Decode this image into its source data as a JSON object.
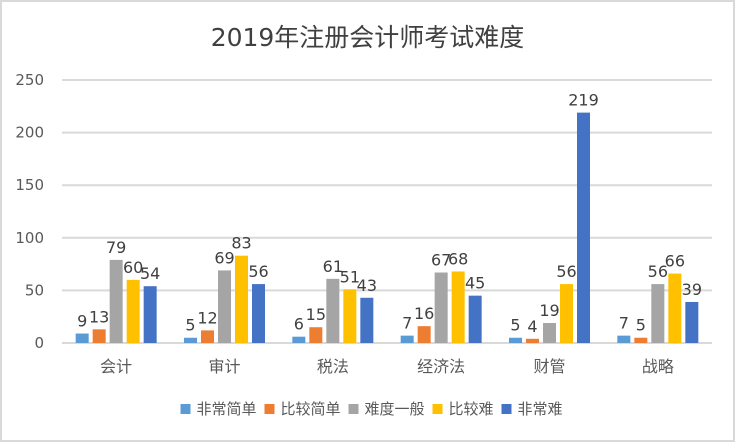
{
  "chart_data": {
    "type": "bar",
    "title": "2019年注册会计师考试难度",
    "xlabel": "",
    "ylabel": "",
    "ylim": [
      0,
      250
    ],
    "yticks": [
      0,
      50,
      100,
      150,
      200,
      250
    ],
    "grid": true,
    "legend_position": "bottom",
    "categories": [
      "会计",
      "审计",
      "税法",
      "经济法",
      "财管",
      "战略"
    ],
    "series": [
      {
        "name": "非常简单",
        "color": "#5b9bd5",
        "values": [
          9,
          5,
          6,
          7,
          5,
          7
        ]
      },
      {
        "name": "比较简单",
        "color": "#ed7d31",
        "values": [
          13,
          12,
          15,
          16,
          4,
          5
        ]
      },
      {
        "name": "难度一般",
        "color": "#a5a5a5",
        "values": [
          79,
          69,
          61,
          67,
          19,
          56
        ]
      },
      {
        "name": "比较难",
        "color": "#ffc000",
        "values": [
          60,
          83,
          51,
          68,
          56,
          66
        ]
      },
      {
        "name": "非常难",
        "color": "#4472c4",
        "values": [
          54,
          56,
          43,
          45,
          219,
          39
        ]
      }
    ]
  }
}
